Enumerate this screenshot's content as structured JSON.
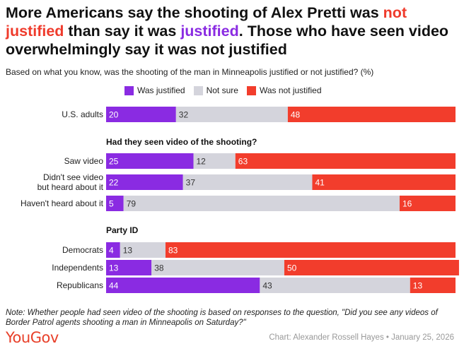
{
  "title": {
    "part1": "More Americans say the shooting of Alex Pretti was ",
    "not_word": "not",
    "part2a": " ",
    "justified1": "justified",
    "part2": " than say it was ",
    "justified2": "justified",
    "part3": ". Those who have seen video overwhelmingly say it was not justified"
  },
  "subtitle": "Based on what you know, was the shooting of the man in Minneapolis justified or not justified? (%)",
  "legend": [
    {
      "label": "Was justified",
      "color": "#8a2be2"
    },
    {
      "label": "Not sure",
      "color": "#d4d4dc"
    },
    {
      "label": "Was not justified",
      "color": "#f23d2c"
    }
  ],
  "colors": {
    "justified": "#8a2be2",
    "not_sure": "#d4d4dc",
    "not_justified": "#f23d2c"
  },
  "chart_data": {
    "type": "bar",
    "orientation": "horizontal-stacked",
    "xlim": [
      0,
      100
    ],
    "series_names": [
      "Was justified",
      "Not sure",
      "Was not justified"
    ],
    "groups": [
      {
        "heading": "",
        "rows": [
          {
            "label": [
              "U.S. adults"
            ],
            "values": [
              20,
              32,
              48
            ]
          }
        ]
      },
      {
        "heading": "Had they seen video of the shooting?",
        "rows": [
          {
            "label": [
              "Saw video"
            ],
            "values": [
              25,
              12,
              63
            ]
          },
          {
            "label": [
              "Didn't see video",
              "but heard about it"
            ],
            "values": [
              22,
              37,
              41
            ]
          },
          {
            "label": [
              "Haven't heard about it"
            ],
            "values": [
              5,
              79,
              16
            ]
          }
        ]
      },
      {
        "heading": "Party ID",
        "rows": [
          {
            "label": [
              "Democrats"
            ],
            "values": [
              4,
              13,
              83
            ]
          },
          {
            "label": [
              "Independents"
            ],
            "values": [
              13,
              38,
              50
            ]
          },
          {
            "label": [
              "Republicans"
            ],
            "values": [
              44,
              43,
              13
            ]
          }
        ]
      }
    ]
  },
  "note": "Note: Whether people had seen video of the shooting is based on responses to the question, \"Did you see any videos of Border Patrol agents shooting a man in Minneapolis on Saturday?\"",
  "logo": "YouGov",
  "credit": "Chart: Alexander Rossell Hayes • January 25, 2026"
}
